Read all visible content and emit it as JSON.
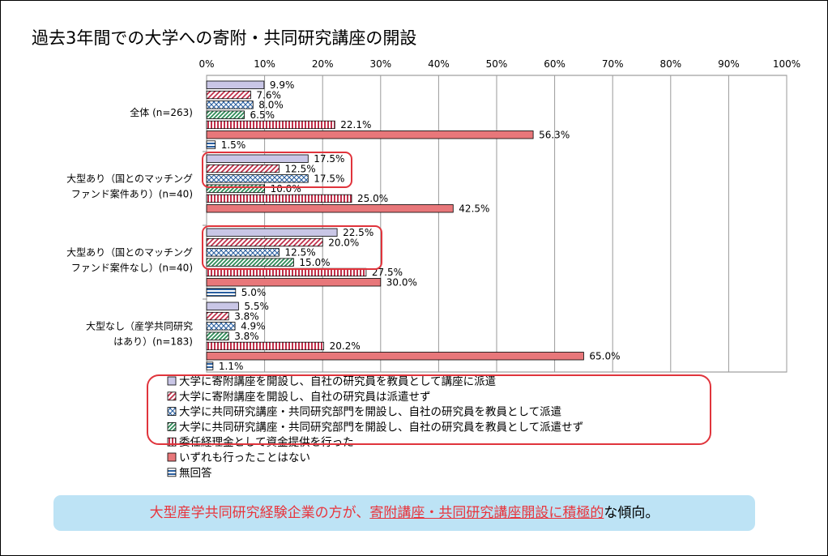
{
  "title": "過去3年間での大学への寄附・共同研究講座の開設",
  "note": {
    "part_a": "大型産学共同研究経験企業の方が、",
    "part_b": "寄附講座・共同研究講座開設に積極的",
    "part_c": "な傾向。"
  },
  "chart_data": {
    "type": "bar",
    "orientation": "horizontal",
    "xlim": [
      0,
      100
    ],
    "x_unit": "%",
    "x_ticks": [
      "0%",
      "10%",
      "20%",
      "30%",
      "40%",
      "50%",
      "60%",
      "70%",
      "80%",
      "90%",
      "100%"
    ],
    "grid": true,
    "legend_position": "bottom",
    "categories": [
      {
        "lines": [
          "全体 (n=263)"
        ]
      },
      {
        "lines": [
          "大型あり（国とのマッチング",
          "ファンド案件あり）(n=40)"
        ]
      },
      {
        "lines": [
          "大型あり（国とのマッチング",
          "ファンド案件なし）(n=40)"
        ]
      },
      {
        "lines": [
          "大型なし（産学共同研究",
          "はあり）(n=183)"
        ]
      }
    ],
    "series": [
      {
        "name": "大学に寄附講座を開設し、自社の研究員を教員として講座に派遣",
        "values": [
          9.9,
          17.5,
          22.5,
          5.5
        ],
        "labels": [
          "9.9%",
          "17.5%",
          "22.5%",
          "5.5%"
        ],
        "color": "#c9c6e6",
        "pattern": "solid"
      },
      {
        "name": "大学に寄附講座を開設し、自社の研究員は派遣せず",
        "values": [
          7.6,
          12.5,
          20.0,
          3.8
        ],
        "labels": [
          "7.6%",
          "12.5%",
          "20.0%",
          "3.8%"
        ],
        "color": "#c0304a",
        "pattern": "diagonal"
      },
      {
        "name": "大学に共同研究講座・共同研究部門を開設し、自社の研究員を教員として派遣",
        "values": [
          8.0,
          17.5,
          12.5,
          4.9
        ],
        "labels": [
          "8.0%",
          "17.5%",
          "12.5%",
          "4.9%"
        ],
        "color": "#2a5fa0",
        "pattern": "cross"
      },
      {
        "name": "大学に共同研究講座・共同研究部門を開設し、自社の研究員を教員として派遣せず",
        "values": [
          6.5,
          10.0,
          15.0,
          3.8
        ],
        "labels": [
          "6.5%",
          "10.0%",
          "15.0%",
          "3.8%"
        ],
        "color": "#2e8b57",
        "pattern": "diagonal-green"
      },
      {
        "name": "委任経理金として資金提供を行った",
        "values": [
          22.1,
          25.0,
          27.5,
          20.2
        ],
        "labels": [
          "22.1%",
          "25.0%",
          "27.5%",
          "20.2%"
        ],
        "color": "#c0304a",
        "pattern": "vertical"
      },
      {
        "name": "いずれも行ったことはない",
        "values": [
          56.3,
          42.5,
          30.0,
          65.0
        ],
        "labels": [
          "56.3%",
          "42.5%",
          "30.0%",
          "65.0%"
        ],
        "color": "#e8777a",
        "pattern": "solid"
      },
      {
        "name": "無回答",
        "values": [
          1.5,
          null,
          5.0,
          1.1
        ],
        "labels": [
          "1.5%",
          "",
          "5.0%",
          "1.1%"
        ],
        "color": "#2a5fa0",
        "pattern": "horizontal"
      }
    ],
    "highlight_color": "#e0343c"
  }
}
